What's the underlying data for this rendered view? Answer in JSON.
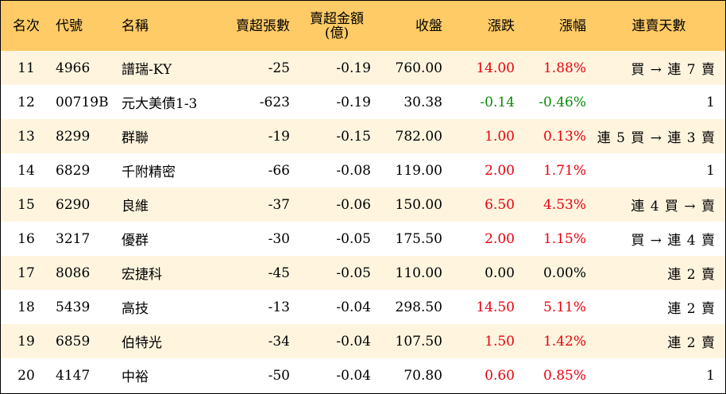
{
  "colors": {
    "header_bg": "#FFCB66",
    "row_alt_bg": "#FFF5DF",
    "up": "#E8000D",
    "down": "#0A8A0A",
    "flat": "#000000"
  },
  "header": {
    "rank": "名次",
    "code": "代號",
    "name": "名稱",
    "sell_vol": "賣超張數",
    "sell_amt_line1": "賣超金額",
    "sell_amt_line2": "(億)",
    "close": "收盤",
    "change": "漲跌",
    "change_pct": "漲幅",
    "streak": "連賣天數"
  },
  "rows": [
    {
      "rank": "11",
      "code": "4966",
      "name": "譜瑞-KY",
      "sell_vol": "-25",
      "sell_amt": "-0.19",
      "close": "760.00",
      "change": "14.00",
      "change_pct": "1.88%",
      "dir": "up",
      "streak": "買 → 連 7 賣"
    },
    {
      "rank": "12",
      "code": "00719B",
      "name": "元大美債1-3",
      "sell_vol": "-623",
      "sell_amt": "-0.19",
      "close": "30.38",
      "change": "-0.14",
      "change_pct": "-0.46%",
      "dir": "down",
      "streak": "1"
    },
    {
      "rank": "13",
      "code": "8299",
      "name": "群聯",
      "sell_vol": "-19",
      "sell_amt": "-0.15",
      "close": "782.00",
      "change": "1.00",
      "change_pct": "0.13%",
      "dir": "up",
      "streak": "連 5 買 → 連 3 賣"
    },
    {
      "rank": "14",
      "code": "6829",
      "name": "千附精密",
      "sell_vol": "-66",
      "sell_amt": "-0.08",
      "close": "119.00",
      "change": "2.00",
      "change_pct": "1.71%",
      "dir": "up",
      "streak": "1"
    },
    {
      "rank": "15",
      "code": "6290",
      "name": "良維",
      "sell_vol": "-37",
      "sell_amt": "-0.06",
      "close": "150.00",
      "change": "6.50",
      "change_pct": "4.53%",
      "dir": "up",
      "streak": "連 4 買 → 賣"
    },
    {
      "rank": "16",
      "code": "3217",
      "name": "優群",
      "sell_vol": "-30",
      "sell_amt": "-0.05",
      "close": "175.50",
      "change": "2.00",
      "change_pct": "1.15%",
      "dir": "up",
      "streak": "買 → 連 4 賣"
    },
    {
      "rank": "17",
      "code": "8086",
      "name": "宏捷科",
      "sell_vol": "-45",
      "sell_amt": "-0.05",
      "close": "110.00",
      "change": "0.00",
      "change_pct": "0.00%",
      "dir": "flat",
      "streak": "連 2 賣"
    },
    {
      "rank": "18",
      "code": "5439",
      "name": "高技",
      "sell_vol": "-13",
      "sell_amt": "-0.04",
      "close": "298.50",
      "change": "14.50",
      "change_pct": "5.11%",
      "dir": "up",
      "streak": "連 2 賣"
    },
    {
      "rank": "19",
      "code": "6859",
      "name": "伯特光",
      "sell_vol": "-34",
      "sell_amt": "-0.04",
      "close": "107.50",
      "change": "1.50",
      "change_pct": "1.42%",
      "dir": "up",
      "streak": "連 2 賣"
    },
    {
      "rank": "20",
      "code": "4147",
      "name": "中裕",
      "sell_vol": "-50",
      "sell_amt": "-0.04",
      "close": "70.80",
      "change": "0.60",
      "change_pct": "0.85%",
      "dir": "up",
      "streak": "1"
    }
  ]
}
